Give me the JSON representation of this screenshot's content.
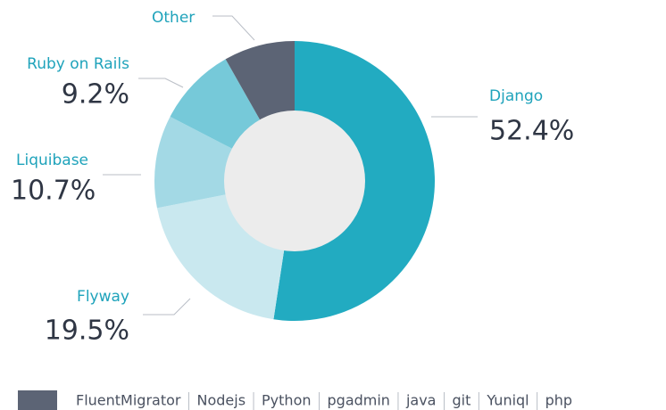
{
  "chart_data": {
    "type": "donut",
    "categories": [
      "Django",
      "Flyway",
      "Liquibase",
      "Ruby on Rails",
      "Other"
    ],
    "values": [
      52.4,
      19.5,
      10.7,
      9.2,
      8.2
    ],
    "value_labels": [
      "52.4%",
      "19.5%",
      "10.7%",
      "9.2%",
      null
    ],
    "colors": [
      "#22abc1",
      "#c9e8ef",
      "#a3d9e5",
      "#76c9d9",
      "#5c6475"
    ],
    "other_items": [
      "FluentMigrator",
      "Nodejs",
      "Python",
      "pgadmin",
      "java",
      "git",
      "Yuniql",
      "php"
    ]
  }
}
